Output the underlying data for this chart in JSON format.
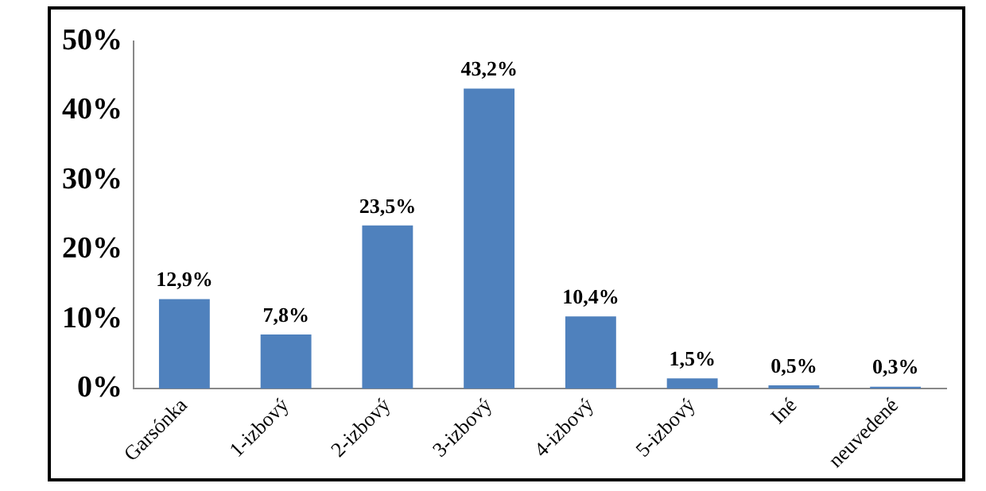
{
  "chart_data": {
    "type": "bar",
    "categories": [
      "Garsónka",
      "1-izbový",
      "2-izbový",
      "3-izbový",
      "4-izbový",
      "5-izbový",
      "Iné",
      "neuvedené"
    ],
    "values": [
      12.9,
      7.8,
      23.5,
      43.2,
      10.4,
      1.5,
      0.5,
      0.3
    ],
    "value_labels": [
      "12,9%",
      "7,8%",
      "23,5%",
      "43,2%",
      "10,4%",
      "1,5%",
      "0,5%",
      "0,3%"
    ],
    "color": "#4f81bd",
    "ylim": [
      0,
      50
    ],
    "yticks": [
      {
        "value": 0,
        "label": "0%"
      },
      {
        "value": 10,
        "label": "10%"
      },
      {
        "value": 20,
        "label": "20%"
      },
      {
        "value": 30,
        "label": "30%"
      },
      {
        "value": 40,
        "label": "40%"
      },
      {
        "value": 50,
        "label": "50%"
      }
    ],
    "grid": false,
    "legend": false
  }
}
